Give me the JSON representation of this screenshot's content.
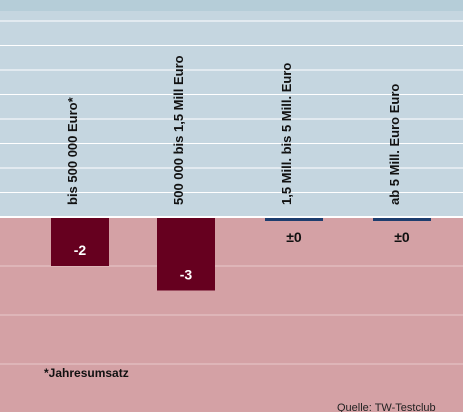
{
  "chart_data": {
    "type": "bar",
    "categories": [
      "bis 500 000 Euro*",
      "500 000 bis 1,5 Mill Euro",
      "1,5 Mill. bis 5 Mill. Euro",
      "ab 5 Mill. Euro Euro"
    ],
    "values": [
      -2,
      -3,
      0,
      0
    ],
    "value_labels": [
      "-2",
      "-3",
      "±0",
      "±0"
    ],
    "ylim": [
      -4,
      4
    ],
    "grid": true,
    "annotations": {
      "footnote": "*Jahresumsatz",
      "source": "Quelle: TW-Testclub"
    }
  },
  "colors": {
    "top_band": "#b5cdd8",
    "positive_bg": "#c5d6e0",
    "negative_bg": "#d4a1a5",
    "bar_negative": "#66001f",
    "bar_zero": "#1d3d6e",
    "label_on_bar": "#ffffff",
    "label_zero": "#111111",
    "gridline_positive": "#ffffff",
    "gridline_negative": "#e8c9cc",
    "axis": "#ffffff"
  }
}
